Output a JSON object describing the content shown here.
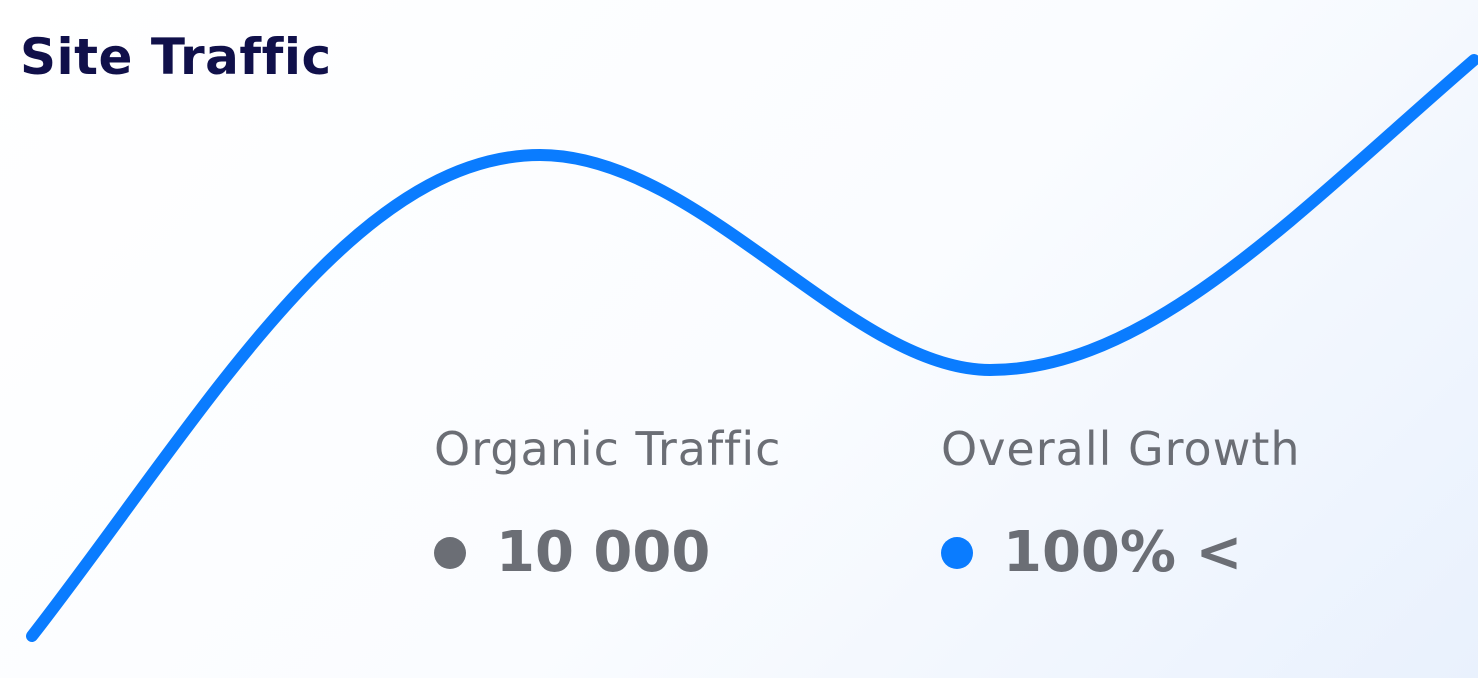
{
  "title": "Site Traffic",
  "stats": [
    {
      "label": "Organic Traffic",
      "value": "10 000",
      "color": "#6b6e75"
    },
    {
      "label": "Overall Growth",
      "value": "100% <",
      "color": "#0a7cff"
    }
  ]
}
